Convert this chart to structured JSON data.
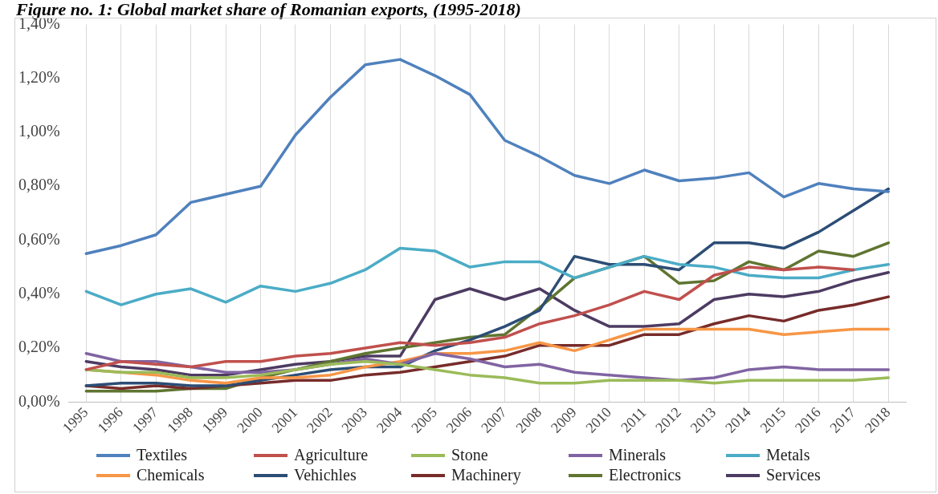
{
  "chart_data": {
    "type": "line",
    "title": "Figure no. 1: Global market share of Romanian exports, (1995-2018)",
    "categories": [
      "1995",
      "1996",
      "1997",
      "1998",
      "1999",
      "2000",
      "2001",
      "2002",
      "2003",
      "2004",
      "2005",
      "2006",
      "2007",
      "2008",
      "2009",
      "2010",
      "2011",
      "2012",
      "2013",
      "2014",
      "2015",
      "2016",
      "2017",
      "2018"
    ],
    "ylim": [
      0,
      1.4
    ],
    "yticks": [
      {
        "value": 0,
        "label": "0,00%"
      },
      {
        "value": 0.2,
        "label": "0,20%"
      },
      {
        "value": 0.4,
        "label": "0,40%"
      },
      {
        "value": 0.6,
        "label": "0,60%"
      },
      {
        "value": 0.8,
        "label": "0,80%"
      },
      {
        "value": 1.0,
        "label": "1,00%"
      },
      {
        "value": 1.2,
        "label": "1,20%"
      },
      {
        "value": 1.4,
        "label": "1,40%"
      }
    ],
    "grid": "x",
    "legend": "bottom",
    "marker": "none",
    "line_style": "solid",
    "series": [
      {
        "name": "Textiles",
        "color": "#4f81bd",
        "values": [
          0.55,
          0.58,
          0.62,
          0.74,
          0.77,
          0.8,
          0.99,
          1.13,
          1.25,
          1.27,
          1.21,
          1.14,
          0.97,
          0.91,
          0.84,
          0.81,
          0.86,
          0.82,
          0.83,
          0.85,
          0.76,
          0.81,
          0.79,
          0.78
        ]
      },
      {
        "name": "Agriculture",
        "color": "#c0504d",
        "values": [
          0.12,
          0.15,
          0.14,
          0.13,
          0.15,
          0.15,
          0.17,
          0.18,
          0.2,
          0.22,
          0.21,
          0.22,
          0.24,
          0.29,
          0.32,
          0.36,
          0.41,
          0.38,
          0.47,
          0.5,
          0.49,
          0.5,
          0.49,
          null
        ]
      },
      {
        "name": "Stone",
        "color": "#9bbb59",
        "values": [
          0.12,
          0.11,
          0.11,
          0.09,
          0.09,
          0.1,
          0.12,
          0.14,
          0.15,
          0.14,
          0.12,
          0.1,
          0.09,
          0.07,
          0.07,
          0.08,
          0.08,
          0.08,
          0.07,
          0.08,
          0.08,
          0.08,
          0.08,
          0.09
        ]
      },
      {
        "name": "Minerals",
        "color": "#8064a2",
        "values": [
          0.18,
          0.15,
          0.15,
          0.13,
          0.11,
          0.11,
          0.12,
          0.14,
          0.16,
          0.14,
          0.18,
          0.16,
          0.13,
          0.14,
          0.11,
          0.1,
          0.09,
          0.08,
          0.09,
          0.12,
          0.13,
          0.12,
          0.12,
          0.12
        ]
      },
      {
        "name": "Metals",
        "color": "#4bacc6",
        "values": [
          0.41,
          0.36,
          0.4,
          0.42,
          0.37,
          0.43,
          0.41,
          0.44,
          0.49,
          0.57,
          0.56,
          0.5,
          0.52,
          0.52,
          0.46,
          0.5,
          0.54,
          0.51,
          0.5,
          0.47,
          0.46,
          0.46,
          0.49,
          0.51
        ]
      },
      {
        "name": "Chemicals",
        "color": "#f79646",
        "values": [
          0.12,
          0.11,
          0.1,
          0.08,
          0.07,
          0.09,
          0.09,
          0.1,
          0.13,
          0.15,
          0.18,
          0.18,
          0.19,
          0.22,
          0.19,
          0.23,
          0.27,
          0.27,
          0.27,
          0.27,
          0.25,
          0.26,
          0.27,
          0.27
        ]
      },
      {
        "name": "Vehichles",
        "color": "#2c4d75",
        "values": [
          0.06,
          0.07,
          0.07,
          0.06,
          0.06,
          0.08,
          0.1,
          0.12,
          0.13,
          0.13,
          0.19,
          0.23,
          0.28,
          0.34,
          0.54,
          0.51,
          0.51,
          0.49,
          0.59,
          0.59,
          0.57,
          0.63,
          0.71,
          0.79
        ]
      },
      {
        "name": "Machinery",
        "color": "#772c2a",
        "values": [
          0.06,
          0.05,
          0.06,
          0.05,
          0.06,
          0.07,
          0.08,
          0.08,
          0.1,
          0.11,
          0.13,
          0.15,
          0.17,
          0.21,
          0.21,
          0.21,
          0.25,
          0.25,
          0.29,
          0.32,
          0.3,
          0.34,
          0.36,
          0.39
        ]
      },
      {
        "name": "Electronics",
        "color": "#5f7530",
        "values": [
          0.04,
          0.04,
          0.04,
          0.05,
          0.05,
          0.09,
          0.12,
          0.15,
          0.18,
          0.2,
          0.22,
          0.24,
          0.25,
          0.35,
          0.46,
          0.5,
          0.54,
          0.44,
          0.45,
          0.52,
          0.49,
          0.56,
          0.54,
          0.59
        ]
      },
      {
        "name": "Services",
        "color": "#4d3b62",
        "values": [
          0.15,
          0.13,
          0.12,
          0.1,
          0.1,
          0.12,
          0.14,
          0.15,
          0.17,
          0.17,
          0.38,
          0.42,
          0.38,
          0.42,
          0.34,
          0.28,
          0.28,
          0.29,
          0.38,
          0.4,
          0.39,
          0.41,
          0.45,
          0.48
        ]
      }
    ]
  }
}
